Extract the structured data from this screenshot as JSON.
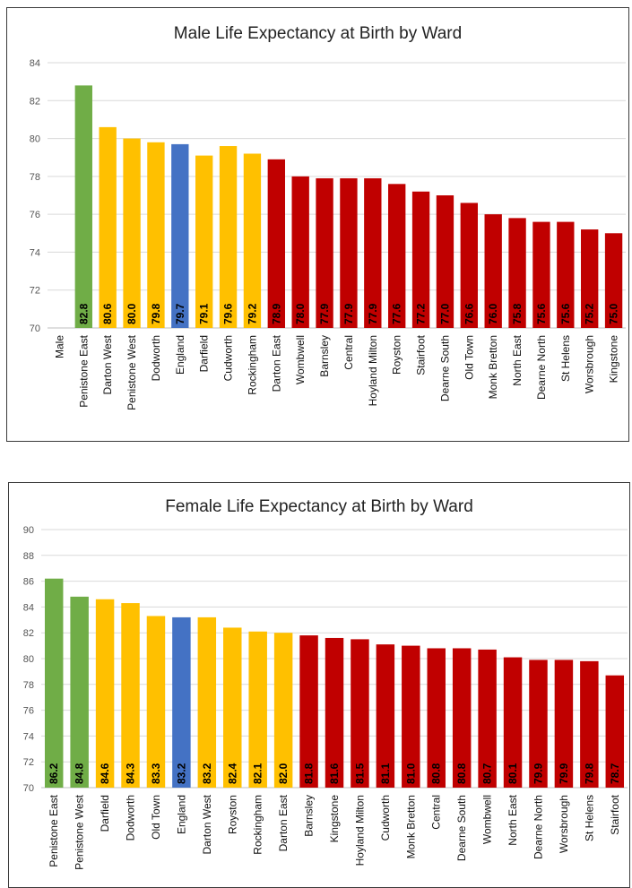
{
  "colors": {
    "green": "#70ad47",
    "yellow": "#ffc000",
    "blue": "#4472c4",
    "red": "#c00000",
    "gridline": "#d9d9d9",
    "axis": "#bfbfbf"
  },
  "chart_data": [
    {
      "type": "bar",
      "title": "Male Life Expectancy at Birth by Ward",
      "xlabel": "",
      "ylabel": "",
      "ylim": [
        70,
        84
      ],
      "yticks": [
        70,
        72,
        74,
        76,
        78,
        80,
        82,
        84
      ],
      "grid": true,
      "legend": "none",
      "categories": [
        "Male",
        "Penistone East",
        "Darton West",
        "Penistone West",
        "Dodworth",
        "England",
        "Darfield",
        "Cudworth",
        "Rockingham",
        "Darton East",
        "Wombwell",
        "Barnsley",
        "Central",
        "Hoyland Milton",
        "Royston",
        "Stairfoot",
        "Dearne South",
        "Old Town",
        "Monk Bretton",
        "North East",
        "Dearne North",
        "St Helens",
        "Worsbrough",
        "Kingstone"
      ],
      "values": [
        null,
        82.8,
        80.6,
        80.0,
        79.8,
        79.7,
        79.1,
        79.6,
        79.2,
        78.9,
        78.0,
        77.9,
        77.9,
        77.9,
        77.6,
        77.2,
        77.0,
        76.6,
        76.0,
        75.8,
        75.6,
        75.6,
        75.2,
        75.0
      ],
      "data_labels": [
        "",
        "82.8",
        "80.6",
        "80.0",
        "79.8",
        "79.7",
        "79.1",
        "79.6",
        "79.2",
        "78.9",
        "78.0",
        "77.9",
        "77.9",
        "77.9",
        "77.6",
        "77.2",
        "77.0",
        "76.6",
        "76.0",
        "75.8",
        "75.6",
        "75.6",
        "75.2",
        "75.0"
      ],
      "bar_colors": [
        "none",
        "green",
        "yellow",
        "yellow",
        "yellow",
        "blue",
        "yellow",
        "yellow",
        "yellow",
        "red",
        "red",
        "red",
        "red",
        "red",
        "red",
        "red",
        "red",
        "red",
        "red",
        "red",
        "red",
        "red",
        "red",
        "red"
      ]
    },
    {
      "type": "bar",
      "title": "Female Life Expectancy at Birth by Ward",
      "xlabel": "",
      "ylabel": "",
      "ylim": [
        70,
        90
      ],
      "yticks": [
        70,
        72,
        74,
        76,
        78,
        80,
        82,
        84,
        86,
        88,
        90
      ],
      "grid": true,
      "legend": "none",
      "categories": [
        "Penistone East",
        "Penistone West",
        "Darfield",
        "Dodworth",
        "Old Town",
        "England",
        "Darton West",
        "Royston",
        "Rockingham",
        "Darton East",
        "Barnsley",
        "Kingstone",
        "Hoyland Milton",
        "Cudworth",
        "Monk Bretton",
        "Central",
        "Dearne South",
        "Wombwell",
        "North East",
        "Dearne North",
        "Worsbrough",
        "St Helens",
        "Stairfoot"
      ],
      "values": [
        86.2,
        84.8,
        84.6,
        84.3,
        83.3,
        83.2,
        83.2,
        82.4,
        82.1,
        82.0,
        81.8,
        81.6,
        81.5,
        81.1,
        81.0,
        80.8,
        80.8,
        80.7,
        80.1,
        79.9,
        79.9,
        79.8,
        78.7
      ],
      "data_labels": [
        "86.2",
        "84.8",
        "84.6",
        "84.3",
        "83.3",
        "83.2",
        "83.2",
        "82.4",
        "82.1",
        "82.0",
        "81.8",
        "81.6",
        "81.5",
        "81.1",
        "81.0",
        "80.8",
        "80.8",
        "80.7",
        "80.1",
        "79.9",
        "79.9",
        "79.8",
        "78.7"
      ],
      "bar_colors": [
        "green",
        "green",
        "yellow",
        "yellow",
        "yellow",
        "blue",
        "yellow",
        "yellow",
        "yellow",
        "yellow",
        "red",
        "red",
        "red",
        "red",
        "red",
        "red",
        "red",
        "red",
        "red",
        "red",
        "red",
        "red",
        "red"
      ]
    }
  ]
}
